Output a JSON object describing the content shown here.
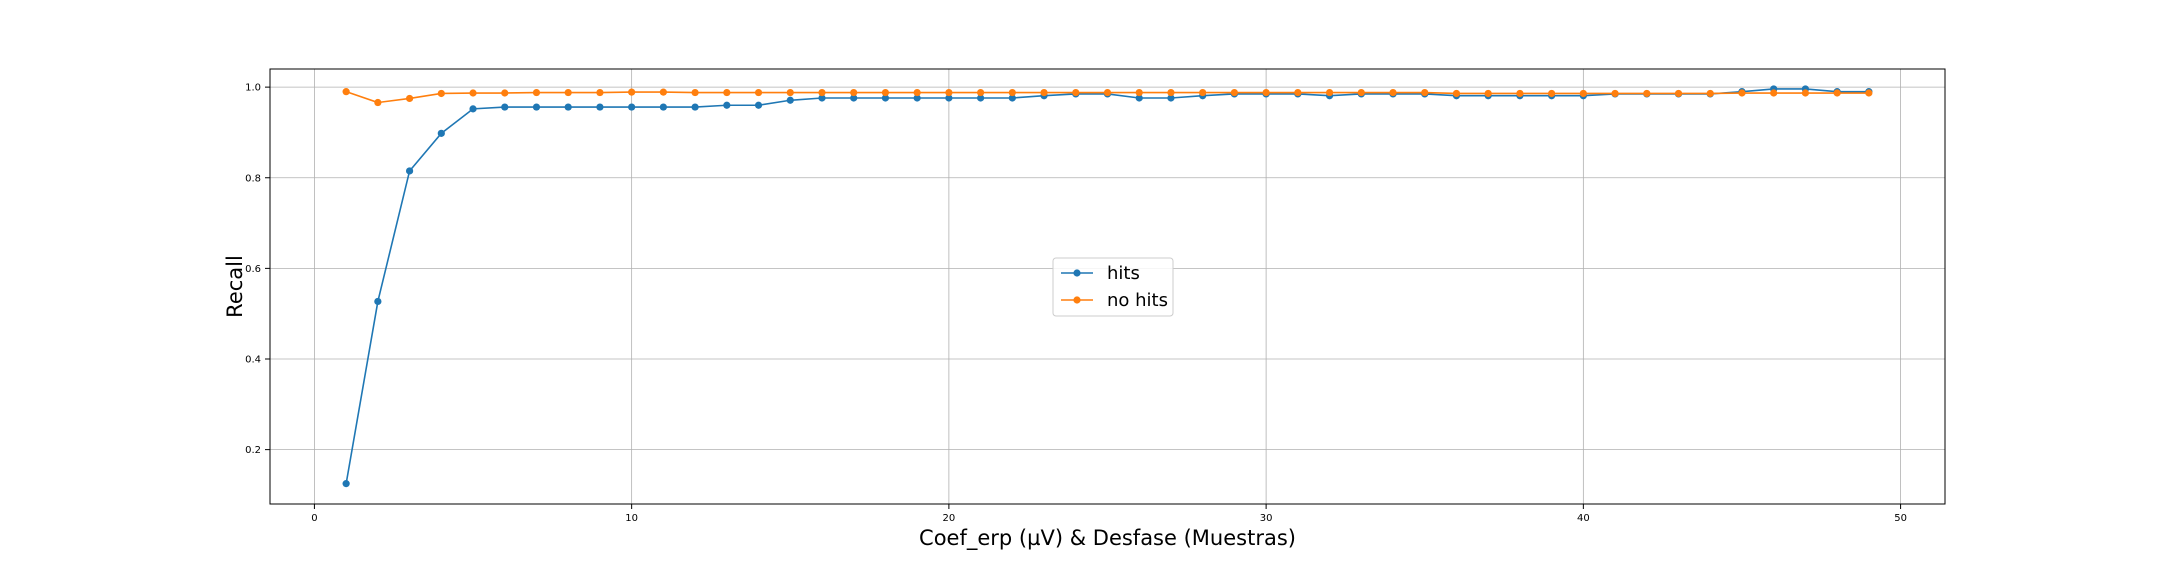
{
  "chart_data": {
    "type": "line",
    "title": "",
    "xlabel": "Coef_erp (µV) & Desfase (Muestras)",
    "ylabel": "Recall",
    "xlim": [
      -1.4,
      51.4
    ],
    "ylim": [
      0.08,
      1.04
    ],
    "xticks": [
      0,
      10,
      20,
      30,
      40,
      50
    ],
    "yticks": [
      0.2,
      0.4,
      0.6,
      0.8,
      1.0
    ],
    "grid": true,
    "legend_position": "center",
    "x": [
      1,
      2,
      3,
      4,
      5,
      6,
      7,
      8,
      9,
      10,
      11,
      12,
      13,
      14,
      15,
      16,
      17,
      18,
      19,
      20,
      21,
      22,
      23,
      24,
      25,
      26,
      27,
      28,
      29,
      30,
      31,
      32,
      33,
      34,
      35,
      36,
      37,
      38,
      39,
      40,
      41,
      42,
      43,
      44,
      45,
      46,
      47,
      48,
      49
    ],
    "series": [
      {
        "name": "hits",
        "color": "#1f77b4",
        "marker": "circle",
        "values": [
          0.125,
          0.527,
          0.815,
          0.898,
          0.952,
          0.956,
          0.956,
          0.956,
          0.956,
          0.956,
          0.956,
          0.956,
          0.96,
          0.96,
          0.971,
          0.976,
          0.976,
          0.976,
          0.976,
          0.976,
          0.976,
          0.976,
          0.981,
          0.985,
          0.985,
          0.976,
          0.976,
          0.981,
          0.985,
          0.985,
          0.985,
          0.981,
          0.985,
          0.985,
          0.985,
          0.981,
          0.981,
          0.981,
          0.981,
          0.981,
          0.985,
          0.985,
          0.985,
          0.985,
          0.99,
          0.996,
          0.996,
          0.99,
          0.99
        ]
      },
      {
        "name": "no hits",
        "color": "#ff7f0e",
        "marker": "circle",
        "values": [
          0.99,
          0.966,
          0.975,
          0.986,
          0.987,
          0.987,
          0.988,
          0.988,
          0.988,
          0.989,
          0.989,
          0.988,
          0.988,
          0.988,
          0.988,
          0.988,
          0.988,
          0.988,
          0.988,
          0.988,
          0.988,
          0.988,
          0.988,
          0.988,
          0.988,
          0.988,
          0.988,
          0.988,
          0.988,
          0.988,
          0.988,
          0.988,
          0.988,
          0.988,
          0.988,
          0.986,
          0.986,
          0.986,
          0.986,
          0.986,
          0.986,
          0.986,
          0.986,
          0.986,
          0.987,
          0.987,
          0.987,
          0.987,
          0.987
        ]
      }
    ]
  }
}
